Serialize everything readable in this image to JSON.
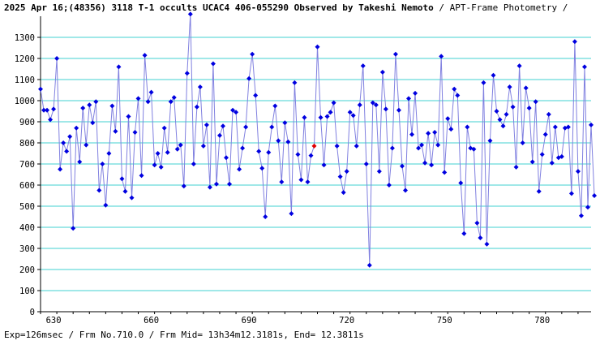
{
  "chart_data": {
    "type": "line",
    "title_bold": "2025 Apr 16;(48356) 3118 T-1 occults UCAC4 406-055290 Observed by Takeshi Nemoto",
    "title_rest": " / APT-Frame Photometry /",
    "footer": "Exp=126msec / Frm No.710.0 / Frm Mid= 13h34m12.3181s, End= 12.3811s",
    "xlim": [
      626,
      795
    ],
    "ylim": [
      0,
      1400
    ],
    "x_ticks": [
      630,
      660,
      690,
      720,
      750,
      780
    ],
    "y_ticks": [
      0,
      100,
      200,
      300,
      400,
      500,
      600,
      700,
      800,
      900,
      1000,
      1100,
      1200,
      1300
    ],
    "grid": true,
    "series_color": "#8080e0",
    "point_color": "#0000e0",
    "highlight_color": "#e00000",
    "highlight_x": 710,
    "x_start": 626,
    "series": [
      {
        "values": [
          1055,
          955,
          955,
          910,
          960,
          1200,
          675,
          800,
          760,
          830,
          395,
          870,
          710,
          965,
          790,
          980,
          895,
          995,
          575,
          700,
          505,
          750,
          975,
          855,
          1160,
          630,
          570,
          925,
          540,
          850,
          1010,
          645,
          1215,
          995,
          1040,
          695,
          750,
          685,
          870,
          755,
          995,
          1015,
          770,
          790,
          595,
          1130,
          1410,
          700,
          970,
          1065,
          785,
          885,
          590,
          1175,
          605,
          835,
          880,
          730,
          605,
          955,
          945,
          675,
          775,
          875,
          1105,
          1220,
          1025,
          760,
          680,
          450,
          755,
          875,
          975,
          810,
          615,
          895,
          805,
          465,
          1085,
          745,
          625,
          920,
          615,
          740,
          785,
          1255,
          920,
          695,
          925,
          945,
          990,
          785,
          640,
          565,
          665,
          945,
          930,
          785,
          980,
          1165,
          700,
          220,
          990,
          980,
          665,
          1135,
          960,
          600,
          775,
          1220,
          955,
          690,
          575,
          1010,
          840,
          1035,
          775,
          790,
          705,
          845,
          695,
          850,
          790,
          1210,
          660,
          915,
          865,
          1055,
          1025,
          610,
          370,
          875,
          775,
          770,
          420,
          350,
          1085,
          320,
          810,
          1120,
          950,
          910,
          880,
          935,
          1065,
          970,
          685,
          1165,
          800,
          1060,
          965,
          710,
          995,
          570,
          745,
          840,
          935,
          705,
          875,
          730,
          735,
          870,
          875,
          560,
          1280,
          665,
          455,
          1160,
          495,
          885,
          550
        ]
      }
    ]
  }
}
